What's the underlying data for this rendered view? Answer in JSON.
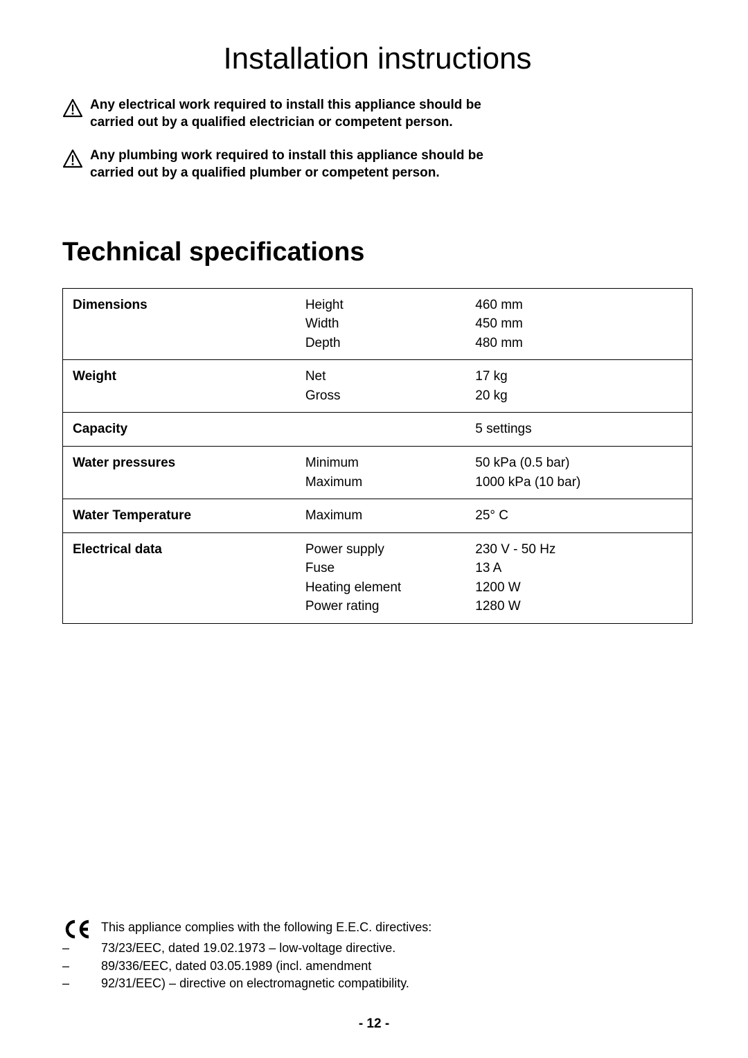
{
  "main_title": "Installation instructions",
  "warnings": [
    "Any electrical work required to install this appliance should be carried out by a qualified electrician or competent person.",
    "Any plumbing work required to install this appliance should be carried out by a qualified plumber or competent person."
  ],
  "section_title": "Technical specifications",
  "specs": [
    {
      "label": "Dimensions",
      "params": [
        "Height",
        "Width",
        "Depth"
      ],
      "values": [
        "460 mm",
        "450 mm",
        "480 mm"
      ]
    },
    {
      "label": "Weight",
      "params": [
        "Net",
        "Gross"
      ],
      "values": [
        "17 kg",
        "20 kg"
      ]
    },
    {
      "label": "Capacity",
      "params": [
        ""
      ],
      "values": [
        "5 settings"
      ]
    },
    {
      "label": "Water pressures",
      "params": [
        "Minimum",
        "Maximum"
      ],
      "values": [
        "50 kPa (0.5 bar)",
        "1000 kPa (10 bar)"
      ]
    },
    {
      "label": "Water Temperature",
      "params": [
        "Maximum"
      ],
      "values": [
        "25° C"
      ]
    },
    {
      "label": "Electrical data",
      "params": [
        "Power supply",
        "Fuse",
        "Heating element",
        "Power rating"
      ],
      "values": [
        "230 V - 50 Hz",
        "13 A",
        "1200 W",
        "1280 W"
      ]
    }
  ],
  "ce_intro": "This appliance complies with the following E.E.C. directives:",
  "ce_lines": [
    "73/23/EEC, dated 19.02.1973 – low-voltage directive.",
    "89/336/EEC, dated 03.05.1989 (incl. amendment",
    "92/31/EEC) – directive on electromagnetic compatibility."
  ],
  "page_number": "- 12 -",
  "colors": {
    "text": "#000000",
    "background": "#ffffff",
    "border": "#000000"
  }
}
